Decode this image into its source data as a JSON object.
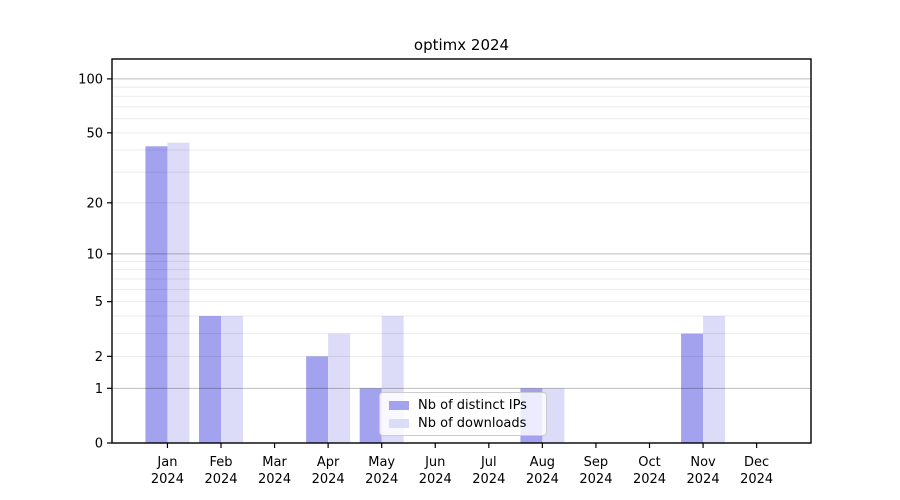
{
  "title": "optimx 2024",
  "chart_data": {
    "type": "bar",
    "title": "optimx 2024",
    "categories": [
      "Jan",
      "Feb",
      "Mar",
      "Apr",
      "May",
      "Jun",
      "Jul",
      "Aug",
      "Sep",
      "Oct",
      "Nov",
      "Dec"
    ],
    "category_year": "2024",
    "series": [
      {
        "name": "Nb of distinct IPs",
        "color": "#a2a2ef",
        "values": [
          42,
          4,
          0,
          2,
          1,
          0,
          0,
          1,
          0,
          0,
          3,
          0
        ]
      },
      {
        "name": "Nb of downloads",
        "color": "#dcdcf8",
        "values": [
          44,
          4,
          0,
          3,
          4,
          0,
          0,
          1,
          0,
          0,
          4,
          0
        ]
      }
    ],
    "xlabel": "",
    "ylabel": "",
    "y_scale": "log1p",
    "y_major_ticks": [
      0,
      1,
      2,
      5,
      10,
      20,
      50,
      100
    ],
    "y_minor_ticks": [
      3,
      4,
      6,
      7,
      8,
      9,
      30,
      40,
      60,
      70,
      80,
      90
    ],
    "ylim": [
      0,
      129
    ],
    "grid": "horizontal",
    "legend_position": "lower center"
  },
  "colors": {
    "background": "#ffffff",
    "frame": "#000000",
    "major_grid": "rgba(0,0,0,0.26)",
    "minor_grid": "rgba(0,0,0,0.08)",
    "text": "#000000"
  }
}
